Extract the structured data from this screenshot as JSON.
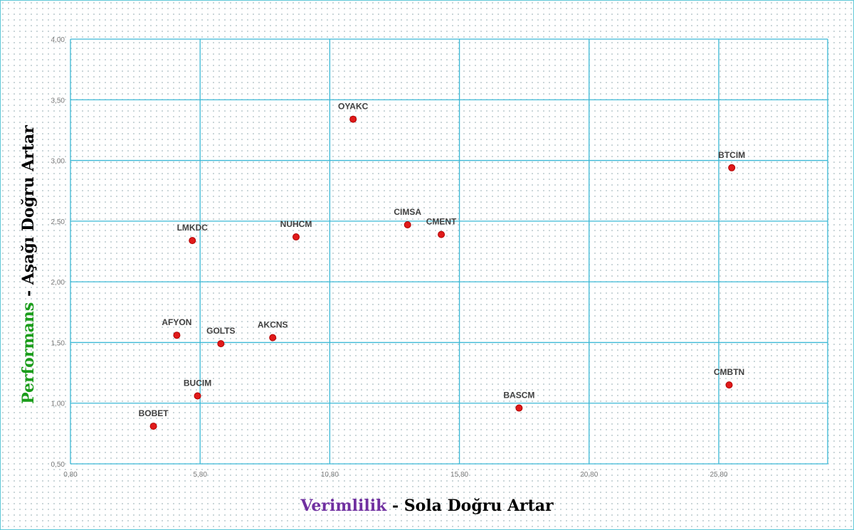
{
  "chart_data": {
    "type": "scatter",
    "xlabel": {
      "primary": "Verimlilik",
      "connector": " - ",
      "secondary": "Sola Doğru Artar"
    },
    "ylabel": {
      "primary": "Performans",
      "connector": " - ",
      "secondary": "Aşağı Doğru Artar"
    },
    "xlim": [
      0.8,
      30.0
    ],
    "ylim": [
      0.5,
      4.0
    ],
    "x_ticks": [
      "0,80",
      "5,80",
      "10,80",
      "15,80",
      "20,80",
      "25,80"
    ],
    "y_ticks": [
      "0,50",
      "1,00",
      "1,50",
      "2,00",
      "2,50",
      "3,00",
      "3,50",
      "4,00"
    ],
    "grid": true,
    "colors": {
      "point": "#e01a1a",
      "grid": "#3bb8d6",
      "x_primary": "#7030a0",
      "y_primary": "#1a9c1a",
      "secondary": "#000000"
    },
    "points": [
      {
        "label": "OYAKC",
        "x": 11.7,
        "y": 3.34
      },
      {
        "label": "BTCIM",
        "x": 26.3,
        "y": 2.94
      },
      {
        "label": "CIMSA",
        "x": 13.8,
        "y": 2.47
      },
      {
        "label": "CMENT",
        "x": 15.1,
        "y": 2.39
      },
      {
        "label": "NUHCM",
        "x": 9.5,
        "y": 2.37
      },
      {
        "label": "LMKDC",
        "x": 5.5,
        "y": 2.34
      },
      {
        "label": "AFYON",
        "x": 4.9,
        "y": 1.56
      },
      {
        "label": "GOLTS",
        "x": 6.6,
        "y": 1.49
      },
      {
        "label": "AKCNS",
        "x": 8.6,
        "y": 1.54
      },
      {
        "label": "BUCIM",
        "x": 5.7,
        "y": 1.06
      },
      {
        "label": "CMBTN",
        "x": 26.2,
        "y": 1.15
      },
      {
        "label": "BASCM",
        "x": 18.1,
        "y": 0.96
      },
      {
        "label": "BOBET",
        "x": 4.0,
        "y": 0.81
      }
    ]
  }
}
